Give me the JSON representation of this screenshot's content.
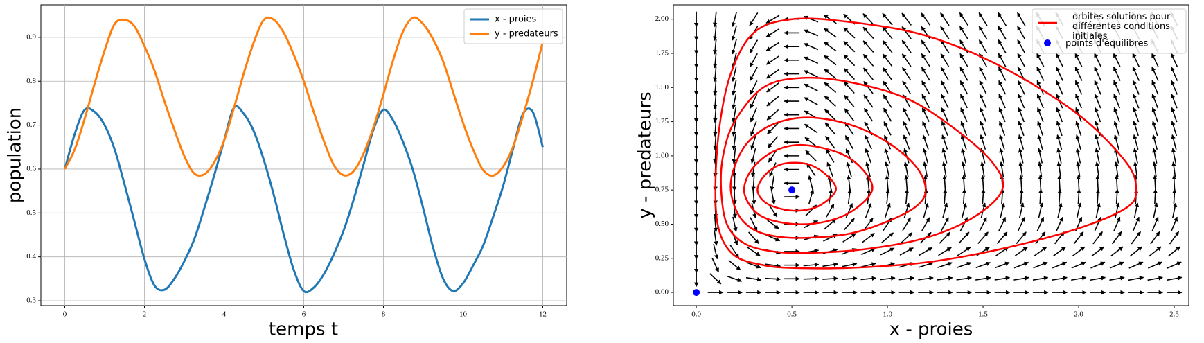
{
  "chart_data": [
    {
      "type": "line",
      "xlabel": "temps t",
      "ylabel": "population",
      "x": [
        0,
        0.25,
        0.5,
        0.75,
        1,
        1.25,
        1.5,
        1.75,
        2,
        2.25,
        2.5,
        2.75,
        3,
        3.25,
        3.5,
        3.75,
        4,
        4.25,
        4.5,
        4.75,
        5,
        5.25,
        5.5,
        5.75,
        6,
        6.25,
        6.5,
        6.75,
        7,
        7.25,
        7.5,
        7.75,
        8,
        8.25,
        8.5,
        8.75,
        9,
        9.25,
        9.5,
        9.75,
        10,
        10.25,
        10.5,
        10.75,
        11,
        11.25,
        11.5,
        11.75,
        12
      ],
      "series": [
        {
          "name": "x - proies",
          "color": "#1f77b4",
          "values": [
            0.6,
            0.68,
            0.735,
            0.73,
            0.7,
            0.645,
            0.565,
            0.48,
            0.395,
            0.335,
            0.325,
            0.35,
            0.39,
            0.44,
            0.51,
            0.585,
            0.665,
            0.74,
            0.725,
            0.685,
            0.62,
            0.54,
            0.45,
            0.37,
            0.322,
            0.33,
            0.36,
            0.405,
            0.46,
            0.53,
            0.61,
            0.69,
            0.735,
            0.71,
            0.66,
            0.595,
            0.51,
            0.42,
            0.35,
            0.322,
            0.34,
            0.38,
            0.425,
            0.49,
            0.56,
            0.645,
            0.725,
            0.73,
            0.65
          ]
        },
        {
          "name": "y - predateurs",
          "color": "#ff7f0e",
          "values": [
            0.6,
            0.645,
            0.715,
            0.795,
            0.87,
            0.93,
            0.94,
            0.925,
            0.88,
            0.825,
            0.755,
            0.69,
            0.63,
            0.59,
            0.588,
            0.615,
            0.665,
            0.74,
            0.82,
            0.89,
            0.94,
            0.94,
            0.91,
            0.86,
            0.8,
            0.73,
            0.665,
            0.61,
            0.586,
            0.595,
            0.635,
            0.695,
            0.77,
            0.85,
            0.915,
            0.945,
            0.93,
            0.895,
            0.845,
            0.775,
            0.705,
            0.645,
            0.598,
            0.585,
            0.605,
            0.65,
            0.72,
            0.8,
            0.89
          ]
        }
      ],
      "xlim": [
        -0.6,
        12.6
      ],
      "xticks": [
        0,
        2,
        4,
        6,
        8,
        10,
        12
      ],
      "ylim": [
        0.289,
        0.974
      ],
      "yticks": [
        0.3,
        0.4,
        0.5,
        0.6,
        0.7,
        0.8,
        0.9
      ],
      "grid": true,
      "legend": "upper right"
    },
    {
      "type": "phase",
      "xlabel": "x - proies",
      "ylabel": "y - predateurs",
      "orbits": {
        "name": "orbites solutions pour différentes conditions initiales",
        "color": "#ff0000",
        "curves": [
          {
            "x": [
              0.32,
              0.36,
              0.45,
              0.55,
              0.65,
              0.73,
              0.68,
              0.58,
              0.45,
              0.36
            ],
            "y": [
              0.75,
              0.66,
              0.61,
              0.6,
              0.64,
              0.75,
              0.86,
              0.94,
              0.94,
              0.86
            ]
          },
          {
            "x": [
              0.25,
              0.29,
              0.37,
              0.52,
              0.68,
              0.82,
              0.92,
              0.87,
              0.75,
              0.55,
              0.4,
              0.29
            ],
            "y": [
              0.75,
              0.62,
              0.54,
              0.5,
              0.52,
              0.6,
              0.75,
              0.9,
              1.02,
              1.08,
              1.03,
              0.9
            ]
          },
          {
            "x": [
              0.18,
              0.22,
              0.3,
              0.42,
              0.58,
              0.8,
              1.0,
              1.15,
              1.2,
              1.15,
              1.0,
              0.8,
              0.58,
              0.4,
              0.27,
              0.2
            ],
            "y": [
              0.75,
              0.57,
              0.46,
              0.41,
              0.4,
              0.43,
              0.52,
              0.63,
              0.75,
              0.92,
              1.1,
              1.23,
              1.28,
              1.23,
              1.1,
              0.92
            ]
          },
          {
            "x": [
              0.13,
              0.16,
              0.25,
              0.4,
              0.6,
              0.9,
              1.2,
              1.45,
              1.6,
              1.55,
              1.35,
              1.1,
              0.8,
              0.55,
              0.35,
              0.2,
              0.14
            ],
            "y": [
              0.75,
              0.5,
              0.36,
              0.3,
              0.29,
              0.32,
              0.4,
              0.55,
              0.75,
              0.95,
              1.2,
              1.42,
              1.54,
              1.57,
              1.5,
              1.25,
              1.0
            ]
          },
          {
            "x": [
              0.1,
              0.12,
              0.2,
              0.35,
              0.5,
              0.8,
              1.2,
              1.6,
              2.0,
              2.25,
              2.3,
              2.25,
              2.0,
              1.6,
              1.2,
              0.8,
              0.5,
              0.3,
              0.18,
              0.12
            ],
            "y": [
              0.75,
              0.45,
              0.27,
              0.2,
              0.18,
              0.18,
              0.22,
              0.32,
              0.47,
              0.62,
              0.75,
              0.95,
              1.3,
              1.65,
              1.88,
              1.98,
              2.0,
              1.9,
              1.6,
              1.2
            ]
          }
        ]
      },
      "equilibria": {
        "name": "points d'équilibres",
        "color": "#0000ff",
        "x": [
          0,
          0.5
        ],
        "y": [
          0,
          0.75
        ]
      },
      "xlim": [
        -0.12,
        2.576
      ],
      "xticks": [
        {
          "value": 0,
          "label": "0.0"
        },
        {
          "value": 0.5,
          "label": "0.5"
        },
        {
          "value": 1,
          "label": "1.0"
        },
        {
          "value": 1.5,
          "label": "1.5"
        },
        {
          "value": 2,
          "label": "2.0"
        },
        {
          "value": 2.5,
          "label": "2.5"
        }
      ],
      "ylim": [
        -0.096,
        2.105
      ],
      "yticks": [
        {
          "value": 0,
          "label": "0.00"
        },
        {
          "value": 0.25,
          "label": "0.25"
        },
        {
          "value": 0.5,
          "label": "0.50"
        },
        {
          "value": 0.75,
          "label": "0.75"
        },
        {
          "value": 1,
          "label": "1.00"
        },
        {
          "value": 1.25,
          "label": "1.25"
        },
        {
          "value": 1.5,
          "label": "1.50"
        },
        {
          "value": 1.75,
          "label": "1.75"
        },
        {
          "value": 2,
          "label": "2.00"
        }
      ],
      "grid": false,
      "legend": "upper right"
    }
  ]
}
